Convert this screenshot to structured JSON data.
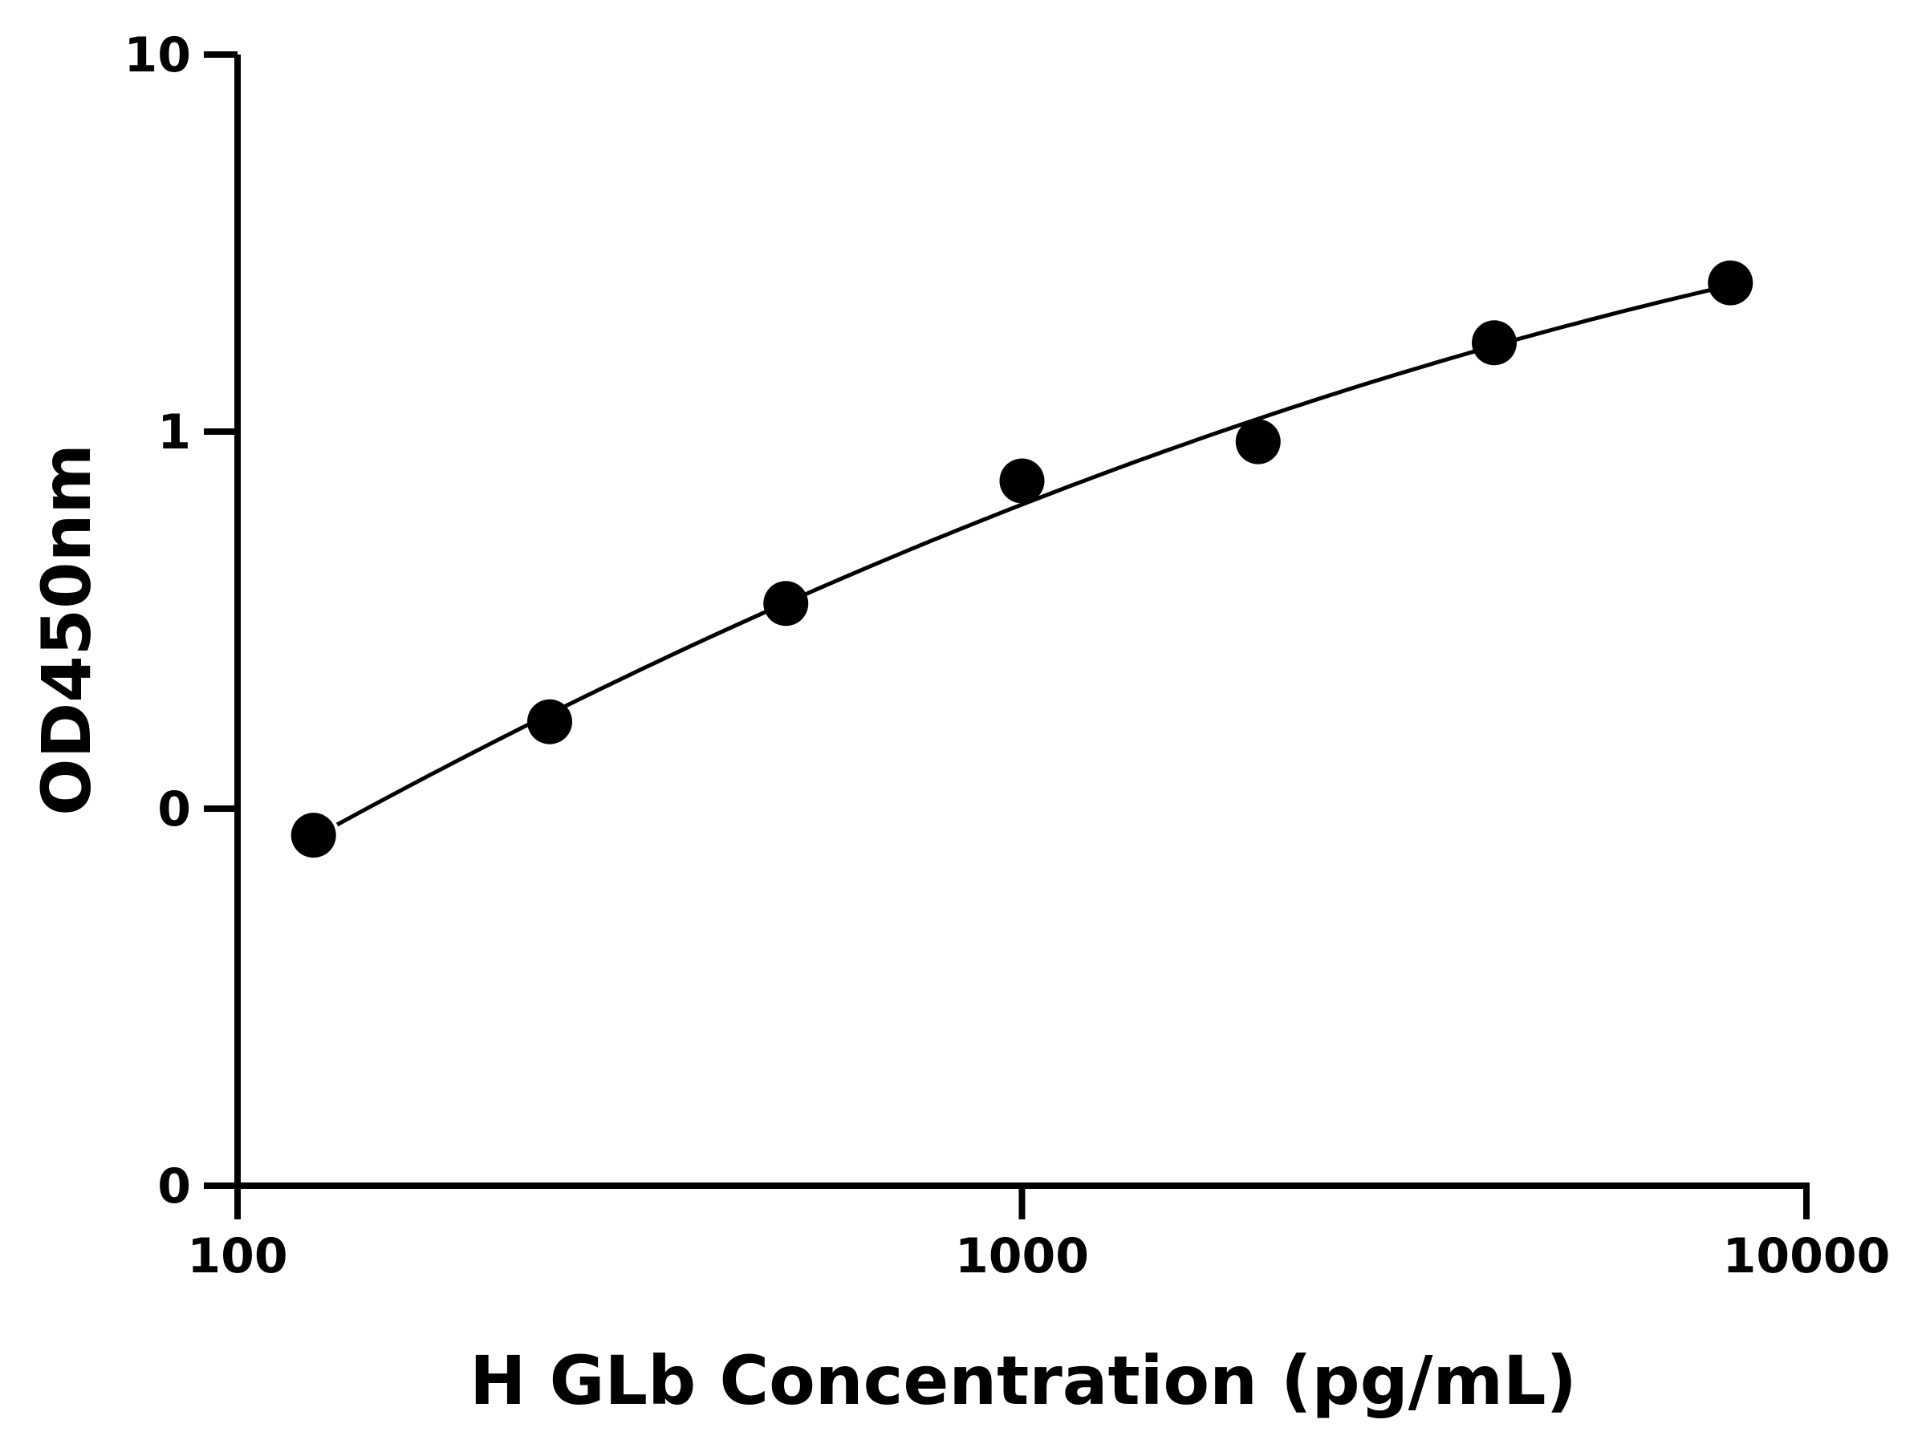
{
  "chart_data": {
    "type": "scatter",
    "title": "",
    "xlabel": "H GLb Concentration (pg/mL)",
    "ylabel": "OD450nm",
    "x_scale": "log",
    "y_scale": "log",
    "xlim": [
      100,
      10000
    ],
    "x_ticks": [
      {
        "value": 100,
        "label": "100"
      },
      {
        "value": 1000,
        "label": "1000"
      },
      {
        "value": 10000,
        "label": "10000"
      }
    ],
    "y_ticks": [
      {
        "value": 10,
        "label": "10"
      },
      {
        "value": 1,
        "label": "1"
      },
      {
        "value": 0.1,
        "label": "0"
      },
      {
        "value": 0.01,
        "label": "0"
      }
    ],
    "ylim": [
      0.01,
      10
    ],
    "grid": false,
    "legend": "none",
    "series": [
      {
        "points": [
          {
            "x": 125,
            "y": 0.085
          },
          {
            "x": 250,
            "y": 0.17
          },
          {
            "x": 500,
            "y": 0.35
          },
          {
            "x": 1000,
            "y": 0.74
          },
          {
            "x": 2000,
            "y": 0.94
          },
          {
            "x": 4000,
            "y": 1.72
          },
          {
            "x": 8000,
            "y": 2.48
          }
        ]
      }
    ],
    "fit_curve": "smooth monotonic fit through points",
    "colors": {
      "points": "#000000",
      "axes": "#000000",
      "curve": "#000000"
    }
  }
}
